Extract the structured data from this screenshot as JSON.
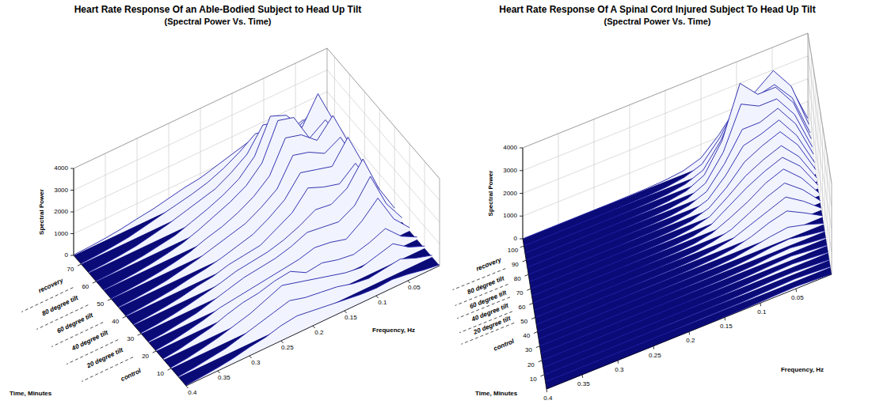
{
  "chart_data": [
    {
      "type": "waterfall",
      "title": "Heart Rate Response Of an Able-Bodied Subject to Head Up Tilt",
      "subtitle": "(Spectral Power Vs. Time)",
      "x_label": "Frequency, Hz",
      "y_label": "Time, Minutes",
      "z_label": "Spectral Power",
      "x": [
        0,
        0.025,
        0.05,
        0.075,
        0.1,
        0.125,
        0.15,
        0.175,
        0.2,
        0.225,
        0.25,
        0.275,
        0.3,
        0.325,
        0.35,
        0.375,
        0.4
      ],
      "xlim": [
        0,
        0.4
      ],
      "xticks": [
        0.05,
        0.1,
        0.15,
        0.2,
        0.25,
        0.3,
        0.35,
        0.4
      ],
      "y": [
        0,
        5,
        10,
        15,
        20,
        25,
        30,
        35,
        40,
        45,
        50,
        55,
        60,
        65,
        70,
        75
      ],
      "ylim": [
        0,
        75
      ],
      "yticks": [
        10,
        20,
        30,
        40,
        50,
        60,
        70
      ],
      "zlim": [
        0,
        4000
      ],
      "zticks": [
        0,
        1000,
        2000,
        3000,
        4000
      ],
      "z": [
        [
          50,
          150,
          300,
          400,
          350,
          400,
          500,
          600,
          700,
          800,
          700,
          500,
          400,
          250,
          150,
          80,
          30
        ],
        [
          80,
          300,
          600,
          500,
          400,
          500,
          700,
          800,
          900,
          1100,
          900,
          700,
          500,
          300,
          200,
          100,
          40
        ],
        [
          100,
          400,
          900,
          700,
          500,
          600,
          800,
          1000,
          1200,
          1400,
          1100,
          800,
          600,
          400,
          250,
          120,
          50
        ],
        [
          120,
          500,
          1200,
          900,
          700,
          800,
          1000,
          900,
          1300,
          1200,
          1000,
          900,
          700,
          450,
          300,
          150,
          60
        ],
        [
          150,
          900,
          2200,
          1500,
          1000,
          1200,
          1300,
          1100,
          1000,
          900,
          800,
          700,
          600,
          400,
          250,
          120,
          50
        ],
        [
          200,
          1200,
          2800,
          1800,
          1400,
          1500,
          1600,
          1300,
          1100,
          1000,
          900,
          700,
          500,
          300,
          200,
          100,
          40
        ],
        [
          250,
          1500,
          3200,
          2200,
          1800,
          1900,
          1500,
          1200,
          1000,
          900,
          800,
          600,
          450,
          300,
          180,
          90,
          40
        ],
        [
          200,
          1300,
          2600,
          2000,
          2200,
          2500,
          1700,
          1300,
          900,
          800,
          700,
          500,
          400,
          250,
          150,
          80,
          30
        ],
        [
          300,
          1800,
          3400,
          2400,
          2600,
          2800,
          1900,
          1400,
          1000,
          800,
          600,
          450,
          350,
          220,
          140,
          70,
          30
        ],
        [
          250,
          1600,
          3000,
          2600,
          3000,
          3200,
          2000,
          1500,
          1100,
          900,
          700,
          500,
          350,
          200,
          120,
          60,
          30
        ],
        [
          300,
          2000,
          3600,
          2800,
          3400,
          3600,
          2200,
          1600,
          1200,
          900,
          700,
          450,
          300,
          180,
          100,
          50,
          20
        ],
        [
          250,
          1800,
          3000,
          2500,
          3800,
          4000,
          2400,
          1700,
          1300,
          1000,
          700,
          450,
          300,
          180,
          100,
          50,
          20
        ],
        [
          300,
          2200,
          3800,
          2600,
          3500,
          3800,
          2300,
          1600,
          1200,
          900,
          650,
          400,
          280,
          160,
          90,
          40,
          20
        ],
        [
          200,
          1500,
          2500,
          2000,
          2800,
          3000,
          2000,
          1500,
          1100,
          900,
          700,
          500,
          350,
          200,
          120,
          60,
          30
        ],
        [
          150,
          1000,
          1800,
          1500,
          2000,
          2200,
          1700,
          1300,
          1000,
          800,
          650,
          500,
          350,
          200,
          120,
          60,
          30
        ],
        [
          100,
          600,
          1200,
          1000,
          1300,
          1400,
          1200,
          1000,
          800,
          700,
          550,
          400,
          300,
          180,
          100,
          50,
          20
        ]
      ],
      "annotations": [
        {
          "text": "control",
          "y": 15
        },
        {
          "text": "20 degree tilt",
          "y": 27
        },
        {
          "text": "40 degree tilt",
          "y": 37
        },
        {
          "text": "60 degree tilt",
          "y": 47
        },
        {
          "text": "80 degree tilt",
          "y": 57
        },
        {
          "text": "recovery",
          "y": 67
        }
      ],
      "phase_bounds": [
        22,
        32,
        42,
        52,
        62
      ],
      "grid": true
    },
    {
      "type": "waterfall",
      "title": "Heart Rate Response Of A Spinal Cord Injured Subject To Head Up Tilt",
      "subtitle": "(Spectral Power Vs. Time)",
      "x_label": "Frequency, Hz",
      "y_label": "Time, Minutes",
      "z_label": "Spectral Power",
      "x": [
        0,
        0.025,
        0.05,
        0.075,
        0.1,
        0.125,
        0.15,
        0.175,
        0.2,
        0.225,
        0.25,
        0.275,
        0.3,
        0.325,
        0.35,
        0.375,
        0.4
      ],
      "xlim": [
        0,
        0.4
      ],
      "xticks": [
        0.05,
        0.1,
        0.15,
        0.2,
        0.25,
        0.3,
        0.35,
        0.4
      ],
      "y": [
        0,
        5,
        10,
        15,
        20,
        25,
        30,
        35,
        40,
        45,
        50,
        55,
        60,
        65,
        70,
        75,
        80,
        85,
        90,
        95,
        100,
        105
      ],
      "ylim": [
        0,
        105
      ],
      "yticks": [
        10,
        20,
        30,
        40,
        50,
        60,
        70,
        80,
        90,
        100
      ],
      "zlim": [
        0,
        4000
      ],
      "zticks": [
        0,
        1000,
        2000,
        3000,
        4000
      ],
      "z": [
        [
          20,
          60,
          100,
          80,
          50,
          30,
          20,
          10,
          5,
          5,
          0,
          0,
          0,
          0,
          0,
          0,
          0
        ],
        [
          30,
          80,
          120,
          90,
          60,
          30,
          20,
          10,
          5,
          0,
          0,
          0,
          0,
          0,
          0,
          0,
          0
        ],
        [
          20,
          70,
          110,
          100,
          70,
          40,
          20,
          10,
          5,
          5,
          0,
          0,
          0,
          0,
          0,
          0,
          0
        ],
        [
          30,
          90,
          150,
          120,
          80,
          40,
          20,
          10,
          5,
          0,
          0,
          0,
          0,
          0,
          0,
          0,
          0
        ],
        [
          30,
          100,
          180,
          140,
          90,
          50,
          25,
          10,
          5,
          5,
          0,
          0,
          0,
          0,
          0,
          0,
          0
        ],
        [
          40,
          120,
          220,
          180,
          100,
          60,
          30,
          15,
          5,
          0,
          0,
          0,
          0,
          0,
          0,
          0,
          0
        ],
        [
          30,
          150,
          300,
          250,
          150,
          80,
          40,
          20,
          10,
          5,
          0,
          0,
          0,
          0,
          0,
          0,
          0
        ],
        [
          40,
          300,
          500,
          400,
          250,
          120,
          60,
          30,
          15,
          5,
          0,
          0,
          0,
          0,
          0,
          0,
          0
        ],
        [
          60,
          500,
          900,
          700,
          400,
          200,
          100,
          50,
          20,
          10,
          5,
          0,
          0,
          0,
          0,
          0,
          0
        ],
        [
          80,
          700,
          1200,
          900,
          600,
          300,
          150,
          60,
          30,
          10,
          5,
          0,
          0,
          0,
          0,
          0,
          0
        ],
        [
          100,
          900,
          1500,
          1200,
          800,
          400,
          200,
          80,
          30,
          10,
          5,
          0,
          0,
          0,
          0,
          0,
          0
        ],
        [
          120,
          1100,
          1800,
          1500,
          1000,
          600,
          250,
          100,
          40,
          15,
          5,
          0,
          0,
          0,
          0,
          0,
          0
        ],
        [
          150,
          1300,
          2000,
          1700,
          1300,
          800,
          300,
          120,
          50,
          20,
          10,
          0,
          0,
          0,
          0,
          0,
          0
        ],
        [
          150,
          1400,
          2200,
          1900,
          1500,
          900,
          350,
          150,
          60,
          20,
          10,
          0,
          0,
          0,
          0,
          0,
          0
        ],
        [
          200,
          1600,
          2500,
          2200,
          1800,
          1000,
          400,
          150,
          60,
          20,
          10,
          0,
          0,
          0,
          0,
          0,
          0
        ],
        [
          200,
          1700,
          2700,
          2400,
          2200,
          1200,
          450,
          180,
          70,
          25,
          10,
          0,
          0,
          0,
          0,
          0,
          0
        ],
        [
          250,
          1900,
          2900,
          2600,
          2600,
          1400,
          500,
          200,
          80,
          30,
          10,
          0,
          0,
          0,
          0,
          0,
          0
        ],
        [
          250,
          2000,
          3000,
          3000,
          3400,
          1600,
          550,
          200,
          80,
          30,
          10,
          0,
          0,
          0,
          0,
          0,
          0
        ],
        [
          300,
          2200,
          3200,
          3200,
          4000,
          1800,
          600,
          220,
          90,
          30,
          10,
          0,
          0,
          0,
          0,
          0,
          0
        ],
        [
          250,
          2100,
          3000,
          2800,
          3000,
          1500,
          500,
          200,
          80,
          30,
          10,
          0,
          0,
          0,
          0,
          0,
          0
        ],
        [
          300,
          2300,
          3300,
          2700,
          2500,
          1300,
          450,
          180,
          70,
          25,
          10,
          0,
          0,
          0,
          0,
          0,
          0
        ],
        [
          250,
          2000,
          2800,
          2300,
          2000,
          1100,
          400,
          150,
          60,
          20,
          10,
          0,
          0,
          0,
          0,
          0,
          0
        ]
      ],
      "annotations": [
        {
          "text": "control",
          "y": 40
        },
        {
          "text": "20 degree tilt",
          "y": 56
        },
        {
          "text": "40 degree tilt",
          "y": 65
        },
        {
          "text": "60 degree tilt",
          "y": 74
        },
        {
          "text": "80 degree tilt",
          "y": 84
        },
        {
          "text": "recovery",
          "y": 97
        }
      ],
      "phase_bounds": [
        52,
        60,
        70,
        79,
        90
      ],
      "grid": true
    }
  ]
}
